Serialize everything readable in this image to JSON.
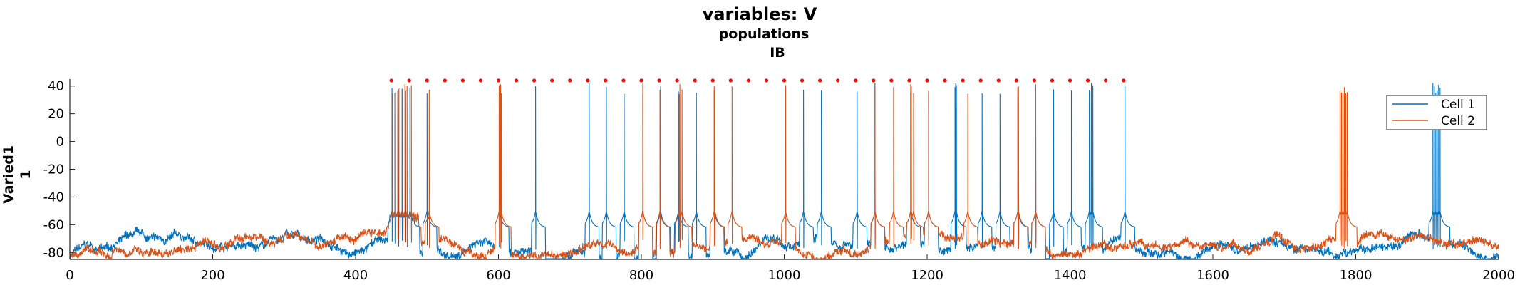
{
  "chart_data": {
    "type": "line",
    "title": "variables: V",
    "subtitle_1": "populations",
    "subtitle_2": "IB",
    "ylabel_1": "Varied1",
    "ylabel_2": "1",
    "xlabel": "",
    "xlim": [
      0,
      2000
    ],
    "ylim": [
      -85,
      45
    ],
    "xticks": [
      0,
      200,
      400,
      600,
      800,
      1000,
      1200,
      1400,
      1600,
      1800,
      2000
    ],
    "yticks": [
      40,
      20,
      0,
      -20,
      -40,
      -60,
      -80
    ],
    "grid": false,
    "legend_position": "top-right",
    "raster_y": 44,
    "raster_times": [
      450,
      475,
      500,
      525,
      550,
      575,
      600,
      625,
      650,
      675,
      700,
      725,
      750,
      775,
      800,
      825,
      850,
      875,
      900,
      925,
      950,
      975,
      1000,
      1025,
      1050,
      1075,
      1100,
      1125,
      1150,
      1175,
      1200,
      1225,
      1250,
      1275,
      1300,
      1325,
      1350,
      1375,
      1400,
      1425,
      1450,
      1475
    ],
    "series": [
      {
        "name": "Cell 1",
        "color": "#0072BD",
        "baseline": -78,
        "spikes": [
          451,
          455,
          460,
          465,
          470,
          476,
          500,
          601,
          652,
          727,
          751,
          776,
          802,
          827,
          852,
          877,
          902,
          1027,
          1052,
          1102,
          1127,
          1177,
          1202,
          1239,
          1240,
          1241,
          1277,
          1302,
          1327,
          1352,
          1377,
          1402,
          1427,
          1428,
          1430,
          1432,
          1477,
          1908,
          1910,
          1912,
          1914,
          1916,
          1918
        ]
      },
      {
        "name": "Cell 2",
        "color": "#D95319",
        "baseline": -76,
        "spikes": [
          452,
          456,
          459,
          462,
          466,
          469,
          472,
          478,
          503,
          601,
          603,
          604,
          802,
          826,
          853,
          854,
          857,
          902,
          903,
          927,
          1002,
          1127,
          1153,
          1177,
          1178,
          1181,
          1202,
          1257,
          1327,
          1328,
          1352,
          1778,
          1780,
          1782,
          1784,
          1786,
          1788
        ]
      }
    ]
  }
}
